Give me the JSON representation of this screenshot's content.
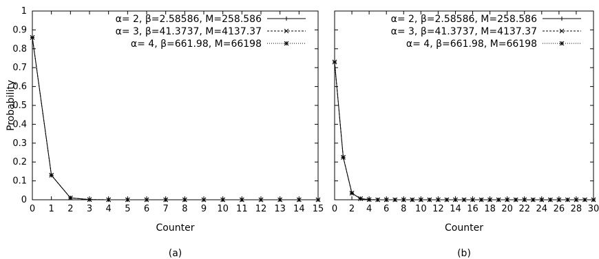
{
  "chart_data": [
    {
      "type": "line",
      "caption": "(a)",
      "xlabel": "Counter",
      "ylabel": "Probability",
      "xlim": [
        0,
        15
      ],
      "ylim": [
        0,
        1
      ],
      "xticks": [
        0,
        1,
        2,
        3,
        4,
        5,
        6,
        7,
        8,
        9,
        10,
        11,
        12,
        13,
        14,
        15
      ],
      "yticks": [
        0,
        0.1,
        0.2,
        0.3,
        0.4,
        0.5,
        0.6,
        0.7,
        0.8,
        0.9,
        1
      ],
      "grid": false,
      "legend_position": "top-right",
      "series": [
        {
          "name": "α= 2, β=2.58586, M=258.586",
          "marker": "plus",
          "dash": "solid",
          "x": [
            0,
            1,
            2,
            3,
            4,
            5,
            6,
            7,
            8,
            9,
            10,
            11,
            12,
            13,
            14,
            15
          ],
          "y": [
            0.86,
            0.13,
            0.01,
            0.001,
            0,
            0,
            0,
            0,
            0,
            0,
            0,
            0,
            0,
            0,
            0,
            0
          ]
        },
        {
          "name": "α= 3, β=41.3737, M=4137.37",
          "marker": "cross",
          "dash": "dashed",
          "x": [
            0,
            1,
            2,
            3,
            4,
            5,
            6,
            7,
            8,
            9,
            10,
            11,
            12,
            13,
            14,
            15
          ],
          "y": [
            0.86,
            0.13,
            0.01,
            0.001,
            0,
            0,
            0,
            0,
            0,
            0,
            0,
            0,
            0,
            0,
            0,
            0
          ]
        },
        {
          "name": "α= 4, β=661.98, M=66198",
          "marker": "star",
          "dash": "dotted",
          "x": [
            0,
            1,
            2,
            3,
            4,
            5,
            6,
            7,
            8,
            9,
            10,
            11,
            12,
            13,
            14,
            15
          ],
          "y": [
            0.86,
            0.13,
            0.01,
            0.001,
            0,
            0,
            0,
            0,
            0,
            0,
            0,
            0,
            0,
            0,
            0,
            0
          ]
        }
      ]
    },
    {
      "type": "line",
      "caption": "(b)",
      "xlabel": "Counter",
      "ylabel": "",
      "xlim": [
        0,
        30
      ],
      "ylim": [
        0,
        1
      ],
      "xticks": [
        0,
        2,
        4,
        6,
        8,
        10,
        12,
        14,
        16,
        18,
        20,
        22,
        24,
        26,
        28,
        30
      ],
      "yticks": [
        0,
        0.1,
        0.2,
        0.3,
        0.4,
        0.5,
        0.6,
        0.7,
        0.8,
        0.9,
        1
      ],
      "show_ytick_labels": false,
      "grid": false,
      "legend_position": "top-right",
      "series": [
        {
          "name": "α= 2, β=2.58586, M=258.586",
          "marker": "plus",
          "dash": "solid",
          "x": [
            0,
            1,
            2,
            3,
            4,
            5,
            6,
            7,
            8,
            9,
            10,
            11,
            12,
            13,
            14,
            15,
            16,
            17,
            18,
            19,
            20,
            21,
            22,
            23,
            24,
            25,
            26,
            27,
            28,
            29,
            30
          ],
          "y": [
            0.73,
            0.225,
            0.035,
            0.006,
            0.001,
            0,
            0,
            0,
            0,
            0,
            0,
            0,
            0,
            0,
            0,
            0,
            0,
            0,
            0,
            0,
            0,
            0,
            0,
            0,
            0,
            0,
            0,
            0,
            0,
            0,
            0
          ]
        },
        {
          "name": "α= 3, β=41.3737, M=4137.37",
          "marker": "cross",
          "dash": "dashed",
          "x": [
            0,
            1,
            2,
            3,
            4,
            5,
            6,
            7,
            8,
            9,
            10,
            11,
            12,
            13,
            14,
            15,
            16,
            17,
            18,
            19,
            20,
            21,
            22,
            23,
            24,
            25,
            26,
            27,
            28,
            29,
            30
          ],
          "y": [
            0.73,
            0.225,
            0.035,
            0.006,
            0.001,
            0,
            0,
            0,
            0,
            0,
            0,
            0,
            0,
            0,
            0,
            0,
            0,
            0,
            0,
            0,
            0,
            0,
            0,
            0,
            0,
            0,
            0,
            0,
            0,
            0,
            0
          ]
        },
        {
          "name": "α= 4, β=661.98, M=66198",
          "marker": "star",
          "dash": "dotted",
          "x": [
            0,
            1,
            2,
            3,
            4,
            5,
            6,
            7,
            8,
            9,
            10,
            11,
            12,
            13,
            14,
            15,
            16,
            17,
            18,
            19,
            20,
            21,
            22,
            23,
            24,
            25,
            26,
            27,
            28,
            29,
            30
          ],
          "y": [
            0.73,
            0.225,
            0.035,
            0.006,
            0.001,
            0,
            0,
            0,
            0,
            0,
            0,
            0,
            0,
            0,
            0,
            0,
            0,
            0,
            0,
            0,
            0,
            0,
            0,
            0,
            0,
            0,
            0,
            0,
            0,
            0,
            0
          ]
        }
      ]
    }
  ]
}
